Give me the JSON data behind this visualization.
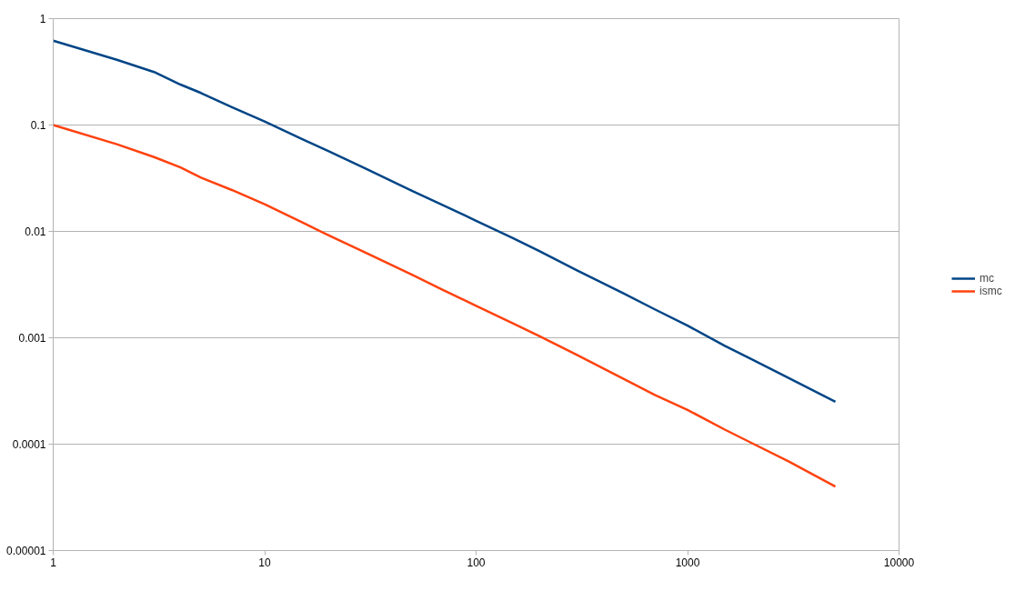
{
  "chart_data": {
    "type": "line",
    "x": [
      1,
      2,
      3,
      4,
      5,
      7,
      10,
      15,
      20,
      30,
      50,
      70,
      100,
      150,
      200,
      300,
      500,
      700,
      1000,
      1500,
      2000,
      3000,
      5000
    ],
    "series": [
      {
        "name": "mc",
        "color": "#004586",
        "values": [
          0.62,
          0.41,
          0.315,
          0.24,
          0.2,
          0.147,
          0.108,
          0.074,
          0.057,
          0.039,
          0.024,
          0.0176,
          0.0126,
          0.0086,
          0.0065,
          0.0043,
          0.0026,
          0.00185,
          0.0013,
          0.00084,
          0.00063,
          0.00042,
          0.00025
        ]
      },
      {
        "name": "ismc",
        "color": "#ff420e",
        "values": [
          0.1,
          0.066,
          0.05,
          0.04,
          0.032,
          0.0245,
          0.018,
          0.0122,
          0.0092,
          0.0063,
          0.0039,
          0.0028,
          0.002,
          0.00136,
          0.00103,
          0.00069,
          0.00041,
          0.00029,
          0.00021,
          0.000137,
          0.000103,
          6.9e-05,
          4e-05
        ]
      }
    ],
    "xlim": [
      1,
      10000
    ],
    "ylim": [
      1e-05,
      1
    ],
    "xticks": [
      1,
      10,
      100,
      1000,
      10000
    ],
    "yticks": [
      {
        "value": 1e-05,
        "label": "0.00001"
      },
      0.0001,
      0.001,
      0.01,
      0.1,
      1
    ],
    "log": "xy",
    "grid": "y",
    "legend": "right"
  }
}
